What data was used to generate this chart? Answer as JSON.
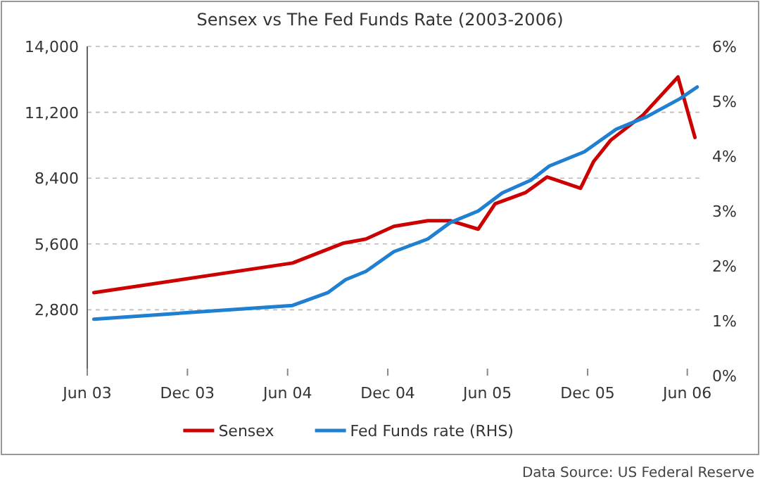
{
  "chart_data": {
    "type": "line",
    "title": "Sensex vs The Fed Funds Rate (2003-2006)",
    "x": [
      "2003-06-13",
      "2004-06-10",
      "2004-09-10",
      "2004-10-22",
      "2004-12-12",
      "2005-02-12",
      "2005-03-25",
      "2005-05-15",
      "2005-06-15",
      "2005-08-10",
      "2005-09-18",
      "2005-11-18",
      "2005-12-12",
      "2006-01-12",
      "2006-03-12",
      "2006-05-15",
      "2006-06-15"
    ],
    "series": [
      {
        "name": "Sensex",
        "color": "#cc0000",
        "values": [
          3530,
          4790,
          5630,
          5810,
          6350,
          6590,
          6590,
          6230,
          7310,
          7790,
          8450,
          7970,
          9110,
          10010,
          11080,
          12700,
          10130
        ]
      },
      {
        "name": "Fed Funds rate (RHS)",
        "color": "#1f7fd0",
        "axis": "y2",
        "x": [
          "2003-06-13",
          "2004-06-10",
          "2004-08-13",
          "2004-09-15",
          "2004-10-22",
          "2004-12-12",
          "2005-02-12",
          "2005-03-25",
          "2005-05-15",
          "2005-06-28",
          "2005-08-19",
          "2005-09-22",
          "2005-11-25",
          "2006-01-22",
          "2006-03-19",
          "2006-05-19",
          "2006-06-19"
        ],
        "values": [
          1.03,
          1.28,
          1.51,
          1.75,
          1.9,
          2.26,
          2.49,
          2.79,
          3.0,
          3.33,
          3.56,
          3.82,
          4.08,
          4.49,
          4.72,
          5.05,
          5.26
        ]
      }
    ],
    "xlim": [
      "2003-06-01",
      "2006-07-01"
    ],
    "xticks": [
      {
        "value": "2003-06-01",
        "label": "Jun 03"
      },
      {
        "value": "2003-12-01",
        "label": "Dec 03"
      },
      {
        "value": "2004-06-01",
        "label": "Jun 04"
      },
      {
        "value": "2004-12-01",
        "label": "Dec 04"
      },
      {
        "value": "2005-06-01",
        "label": "Jun 05"
      },
      {
        "value": "2005-12-01",
        "label": "Dec 05"
      },
      {
        "value": "2006-06-01",
        "label": "Jun 06"
      }
    ],
    "ylim": [
      0,
      14000
    ],
    "yticks": [
      {
        "value": 2800,
        "label": "2,800"
      },
      {
        "value": 5600,
        "label": "5,600"
      },
      {
        "value": 8400,
        "label": "8,400"
      },
      {
        "value": 11200,
        "label": "11,200"
      },
      {
        "value": 14000,
        "label": "14,000"
      }
    ],
    "y2lim": [
      0,
      6
    ],
    "y2ticks": [
      {
        "value": 0,
        "label": "0%"
      },
      {
        "value": 1,
        "label": "1%"
      },
      {
        "value": 2,
        "label": "2%"
      },
      {
        "value": 3,
        "label": "3%"
      },
      {
        "value": 4,
        "label": "4%"
      },
      {
        "value": 5,
        "label": "5%"
      },
      {
        "value": 6,
        "label": "6%"
      }
    ],
    "grid": "y",
    "legend": "bottom",
    "line_style": "solid",
    "marker": "none",
    "annotations": [
      "Data Source: US Federal Reserve"
    ]
  }
}
